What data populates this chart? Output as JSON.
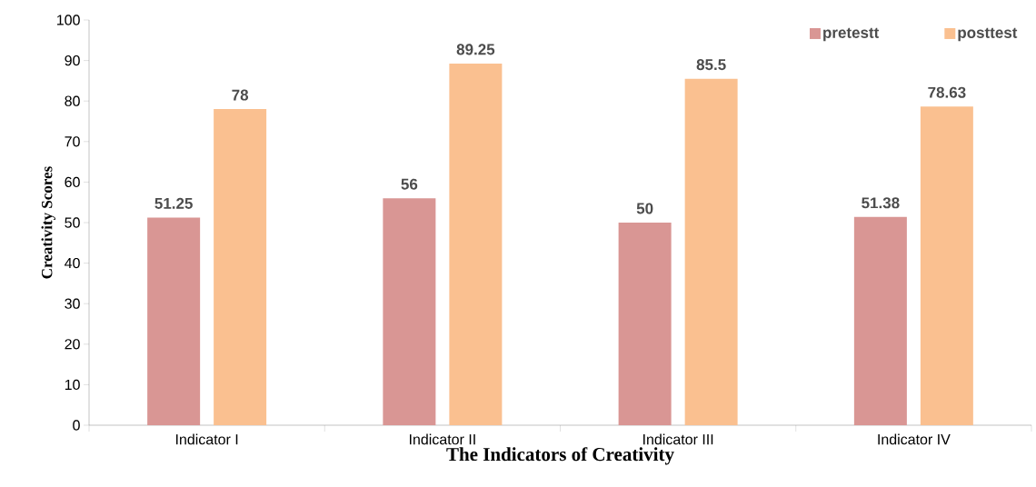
{
  "chart_data": {
    "type": "bar",
    "xlabel": "The Indicators of Creativity",
    "ylabel": "Creativity Scores",
    "categories": [
      "Indicator I",
      "Indicator II",
      "Indicator III",
      "Indicator IV"
    ],
    "series": [
      {
        "name": "pretestt",
        "color": "#d99694",
        "values": [
          51.25,
          56,
          50,
          51.38
        ]
      },
      {
        "name": "posttest",
        "color": "#fac090",
        "values": [
          78,
          89.25,
          85.5,
          78.63
        ]
      }
    ],
    "ylim": [
      0,
      100
    ],
    "yticks": [
      0,
      10,
      20,
      30,
      40,
      50,
      60,
      70,
      80,
      90,
      100
    ],
    "data_labels": true,
    "legend": "top right",
    "grid": false
  }
}
